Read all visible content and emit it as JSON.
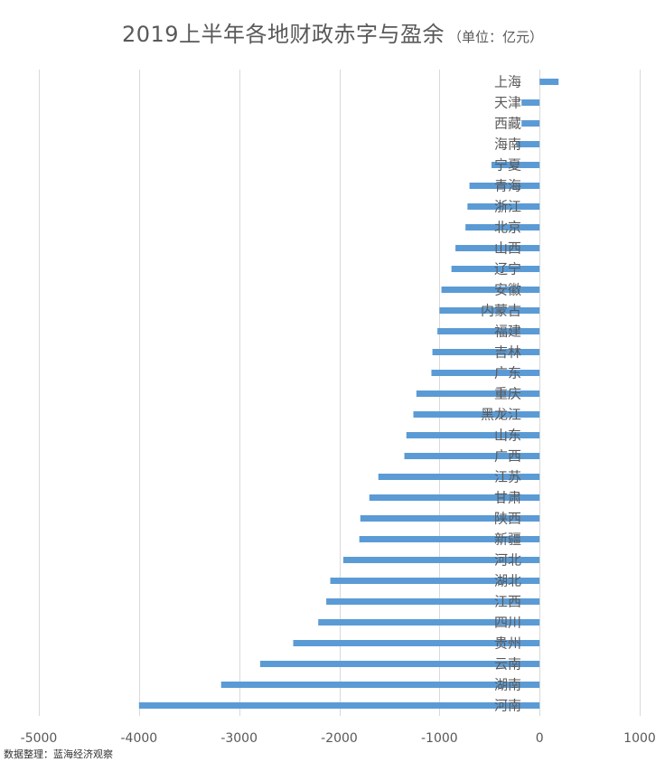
{
  "chart_data": {
    "type": "bar",
    "orientation": "horizontal",
    "title": "2019上半年各地财政赤字与盈余",
    "title_unit": "（单位：亿元）",
    "xlabel": "",
    "ylabel": "",
    "xlim": [
      -5000,
      1000
    ],
    "x_ticks": [
      -5000,
      -4000,
      -3000,
      -2000,
      -1000,
      0,
      1000
    ],
    "grid": "vertical",
    "legend": "none",
    "bar_color": "#5B9BD5",
    "grid_color": "#D9D9D9",
    "categories": [
      "上海",
      "天津",
      "西藏",
      "海南",
      "宁夏",
      "青海",
      "浙江",
      "北京",
      "山西",
      "辽宁",
      "安徽",
      "内蒙古",
      "福建",
      "吉林",
      "广东",
      "重庆",
      "黑龙江",
      "山东",
      "广西",
      "江苏",
      "甘肃",
      "陕西",
      "新疆",
      "河北",
      "湖北",
      "江西",
      "四川",
      "贵州",
      "云南",
      "湖南",
      "河南"
    ],
    "values": [
      190,
      -180,
      -180,
      -230,
      -480,
      -700,
      -720,
      -740,
      -840,
      -880,
      -980,
      -1000,
      -1020,
      -1070,
      -1080,
      -1230,
      -1260,
      -1330,
      -1350,
      -1610,
      -1700,
      -1790,
      -1800,
      -1960,
      -2090,
      -2130,
      -2210,
      -2460,
      -2790,
      -3180,
      -4000
    ]
  },
  "source_note": "数据整理：蓝海经济观察"
}
